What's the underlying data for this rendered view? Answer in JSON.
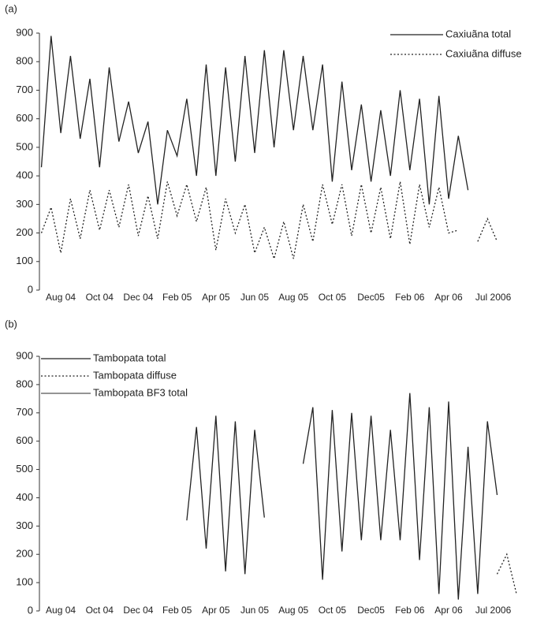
{
  "chart_data": [
    {
      "type": "line",
      "panel_label": "(a)",
      "x": [
        -1,
        -0.5,
        0,
        0.5,
        1,
        1.5,
        2,
        2.5,
        3,
        3.5,
        4,
        4.5,
        5,
        5.5,
        6,
        6.5,
        7,
        7.5,
        8,
        8.5,
        9,
        9.5,
        10,
        10.5,
        11,
        11.5,
        12,
        12.5,
        13,
        13.5,
        14,
        14.5,
        15,
        15.5,
        16,
        16.5,
        17,
        17.5,
        18,
        18.5,
        19,
        19.5,
        20,
        20.5,
        21,
        21.5,
        22,
        22.5
      ],
      "series": [
        {
          "name": "Caxiuãna total",
          "color": "#222222",
          "dash": "solid",
          "values": [
            430,
            890,
            550,
            820,
            530,
            740,
            430,
            780,
            520,
            660,
            480,
            590,
            300,
            560,
            470,
            670,
            400,
            790,
            400,
            780,
            450,
            820,
            480,
            840,
            500,
            840,
            560,
            820,
            560,
            790,
            380,
            730,
            420,
            650,
            380,
            630,
            400,
            700,
            420,
            670,
            300,
            680,
            320,
            540,
            350,
            null,
            null,
            null
          ]
        },
        {
          "name": "Caxiuãna diffuse",
          "color": "#222222",
          "dash": "dotted",
          "values": [
            200,
            290,
            130,
            320,
            180,
            350,
            210,
            350,
            220,
            370,
            190,
            330,
            180,
            380,
            260,
            370,
            240,
            360,
            140,
            320,
            200,
            300,
            130,
            220,
            110,
            240,
            110,
            300,
            170,
            370,
            230,
            370,
            190,
            370,
            200,
            360,
            180,
            380,
            160,
            370,
            220,
            360,
            200,
            210,
            null,
            170,
            250,
            170
          ]
        }
      ],
      "xlim": [
        -1.1,
        23.7
      ],
      "ylim": [
        0,
        900
      ],
      "yticks": [
        0,
        100,
        200,
        300,
        400,
        500,
        600,
        700,
        800,
        900
      ],
      "xticks": [
        {
          "value": 0,
          "label": "Aug 04"
        },
        {
          "value": 2,
          "label": "Oct 04"
        },
        {
          "value": 4,
          "label": "Dec 04"
        },
        {
          "value": 6,
          "label": "Feb 05"
        },
        {
          "value": 8,
          "label": "Apr 05"
        },
        {
          "value": 10,
          "label": "Jun 05"
        },
        {
          "value": 12,
          "label": "Aug 05"
        },
        {
          "value": 14,
          "label": "Oct 05"
        },
        {
          "value": 16,
          "label": "Dec05"
        },
        {
          "value": 18,
          "label": "Feb 06"
        },
        {
          "value": 20,
          "label": "Apr 06"
        },
        {
          "value": 22.3,
          "label": "Jul 2006"
        }
      ],
      "legend": "upper right"
    },
    {
      "type": "line",
      "panel_label": "(b)",
      "x": [
        6.5,
        7,
        7.5,
        8,
        8.5,
        9,
        9.5,
        10,
        10.5,
        11,
        11.5,
        12,
        12.5,
        13,
        13.5,
        14,
        14.5,
        15,
        15.5,
        16,
        16.5,
        17,
        17.5,
        18,
        18.5,
        19,
        19.5,
        20,
        20.5,
        21,
        21.5,
        22,
        22.5,
        23,
        23.5
      ],
      "series": [
        {
          "name": "Tambopata total",
          "color": "#222222",
          "dash": "solid",
          "values": [
            320,
            650,
            220,
            690,
            140,
            670,
            130,
            640,
            330,
            null,
            null,
            null,
            520,
            720,
            110,
            710,
            210,
            700,
            250,
            690,
            250,
            640,
            250,
            770,
            180,
            720,
            60,
            740,
            40,
            580,
            60,
            670,
            410,
            null,
            null
          ]
        },
        {
          "name": "Tambopata diffuse",
          "color": "#222222",
          "dash": "dotted",
          "values": [
            null,
            null,
            null,
            null,
            null,
            null,
            null,
            null,
            null,
            null,
            null,
            null,
            null,
            null,
            null,
            null,
            null,
            null,
            null,
            null,
            null,
            null,
            null,
            null,
            null,
            null,
            null,
            null,
            null,
            null,
            null,
            null,
            130,
            200,
            60
          ]
        },
        {
          "name": "Tambopata BF3 total",
          "color": "#555555",
          "dash": "solid",
          "values": [
            null,
            null,
            null,
            null,
            null,
            null,
            null,
            null,
            null,
            null,
            null,
            null,
            null,
            null,
            null,
            null,
            null,
            null,
            null,
            null,
            null,
            null,
            null,
            null,
            null,
            null,
            null,
            null,
            null,
            null,
            null,
            null,
            null,
            null,
            null
          ]
        }
      ],
      "xlim": [
        -1.1,
        23.7
      ],
      "ylim": [
        0,
        900
      ],
      "yticks": [
        0,
        100,
        200,
        300,
        400,
        500,
        600,
        700,
        800,
        900
      ],
      "xticks": [
        {
          "value": 0,
          "label": "Aug 04"
        },
        {
          "value": 2,
          "label": "Oct 04"
        },
        {
          "value": 4,
          "label": "Dec 04"
        },
        {
          "value": 6,
          "label": "Feb 05"
        },
        {
          "value": 8,
          "label": "Apr 05"
        },
        {
          "value": 10,
          "label": "Jun 05"
        },
        {
          "value": 12,
          "label": "Aug 05"
        },
        {
          "value": 14,
          "label": "Oct 05"
        },
        {
          "value": 16,
          "label": "Dec05"
        },
        {
          "value": 18,
          "label": "Feb 06"
        },
        {
          "value": 20,
          "label": "Apr 06"
        },
        {
          "value": 22.3,
          "label": "Jul 2006"
        }
      ],
      "legend": "upper left"
    }
  ]
}
